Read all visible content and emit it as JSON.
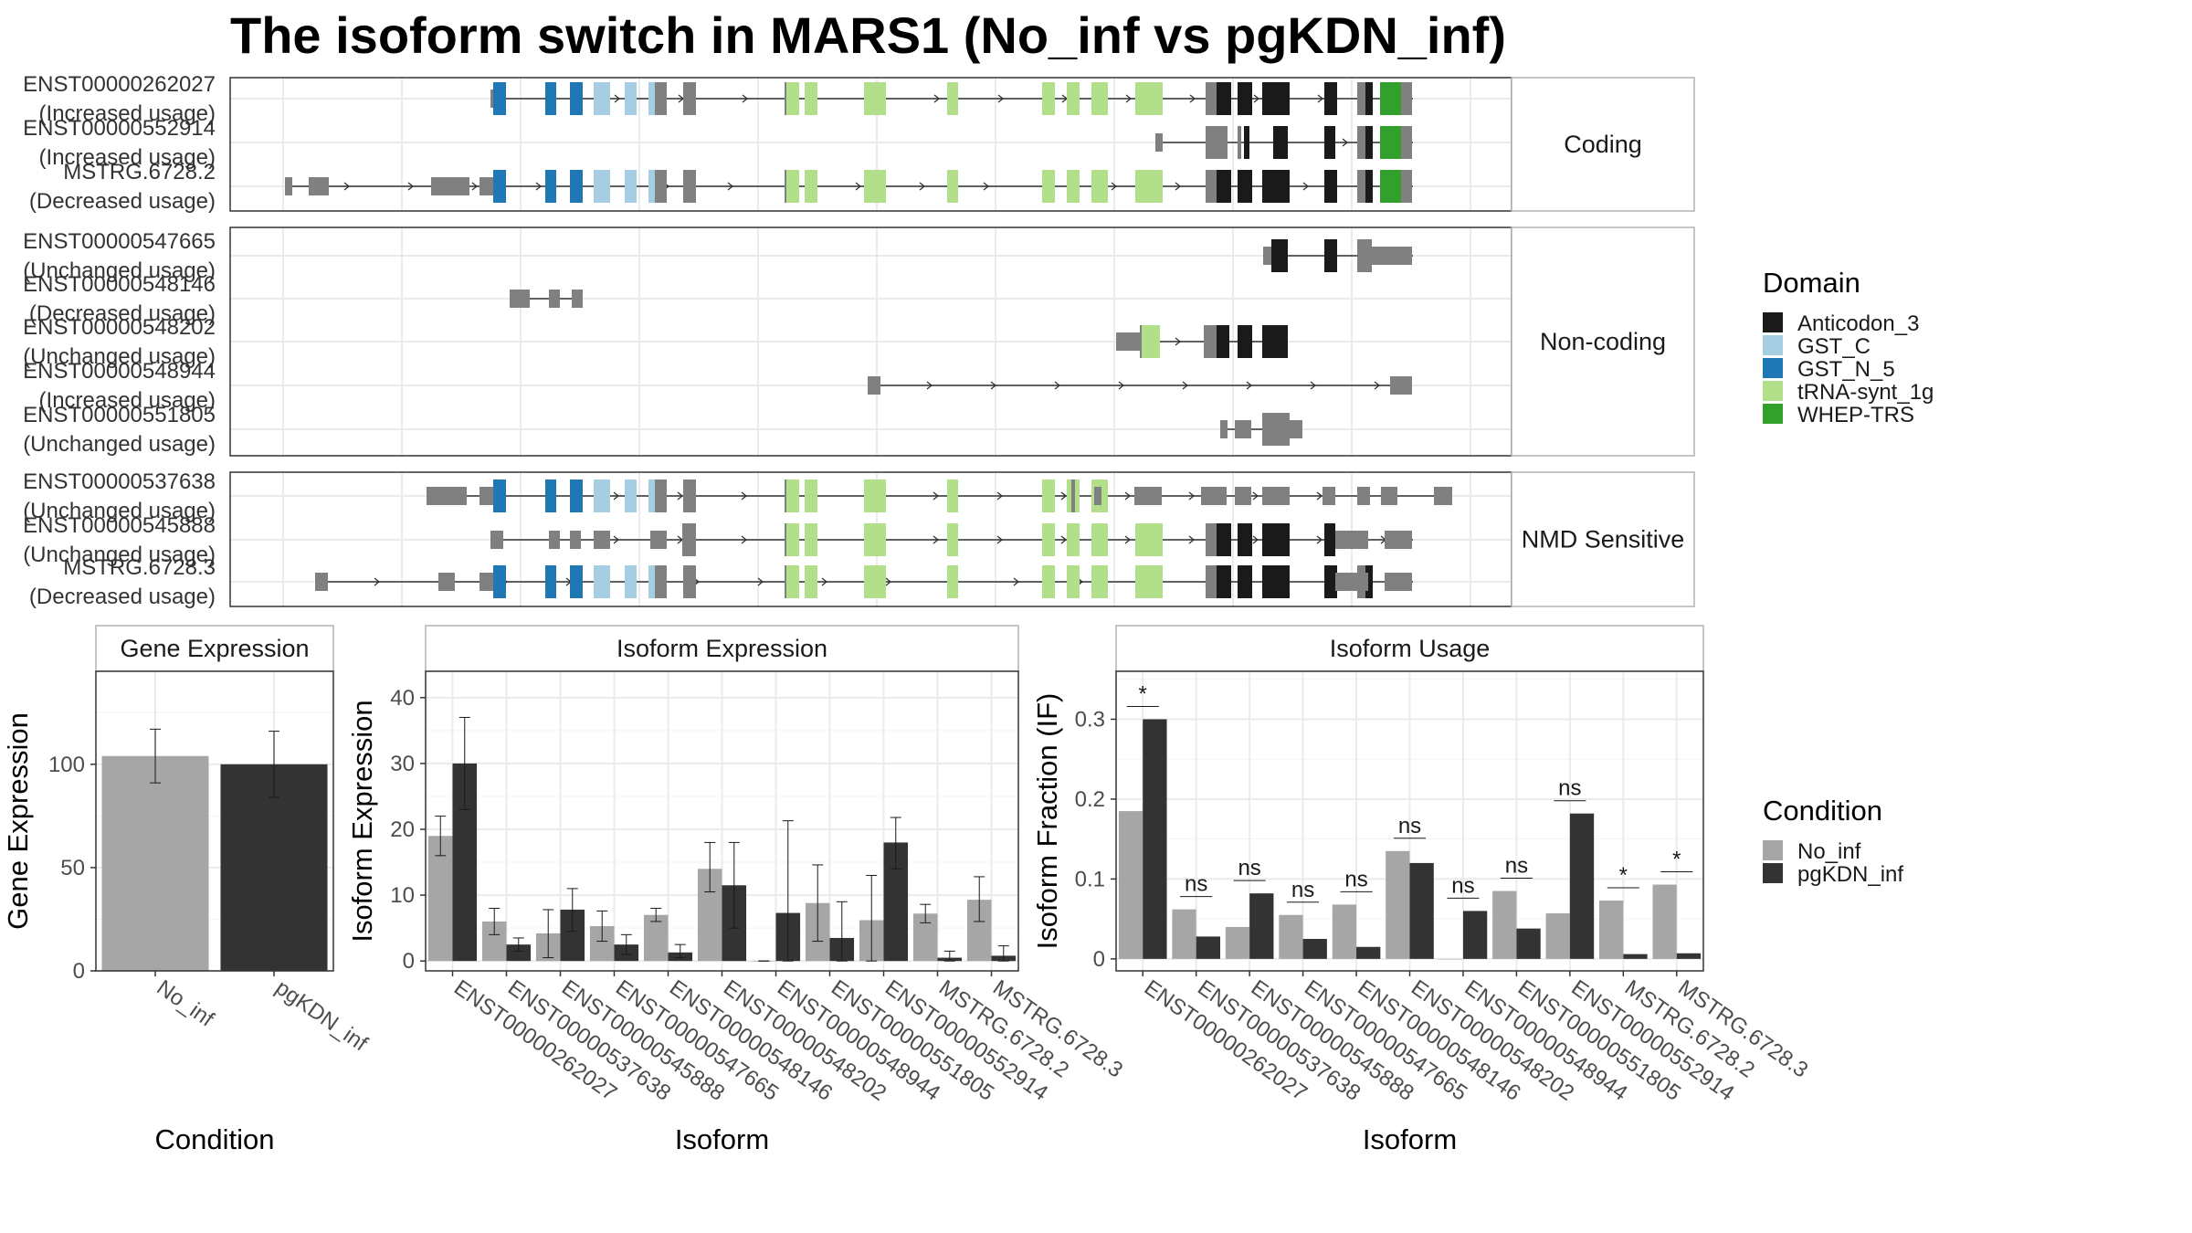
{
  "title": "The isoform switch in MARS1 (No_inf vs pgKDN_inf)",
  "domain_legend": {
    "title": "Domain",
    "items": [
      {
        "label": "Anticodon_3",
        "color": "#1a1a1a"
      },
      {
        "label": "GST_C",
        "color": "#a6cee3"
      },
      {
        "label": "GST_N_5",
        "color": "#1f78b4"
      },
      {
        "label": "tRNA-synt_1g",
        "color": "#b2df8a"
      },
      {
        "label": "WHEP-TRS",
        "color": "#33a02c"
      }
    ]
  },
  "condition_legend": {
    "title": "Condition",
    "items": [
      {
        "label": "No_inf",
        "color": "#a6a6a6"
      },
      {
        "label": "pgKDN_inf",
        "color": "#333333"
      }
    ]
  },
  "transcript_panels": [
    {
      "strip": "Coding",
      "rows": [
        {
          "id": "ENST00000262027",
          "usage": "(Increased usage)"
        },
        {
          "id": "ENST00000552914",
          "usage": "(Increased usage)"
        },
        {
          "id": "MSTRG.6728.2",
          "usage": "(Decreased usage)"
        }
      ]
    },
    {
      "strip": "Non-coding",
      "rows": [
        {
          "id": "ENST00000547665",
          "usage": "(Unchanged usage)"
        },
        {
          "id": "ENST00000548146",
          "usage": "(Decreased usage)"
        },
        {
          "id": "ENST00000548202",
          "usage": "(Unchanged usage)"
        },
        {
          "id": "ENST00000548944",
          "usage": "(Increased usage)"
        },
        {
          "id": "ENST00000551805",
          "usage": "(Unchanged usage)"
        }
      ]
    },
    {
      "strip": "NMD Sensitive",
      "rows": [
        {
          "id": "ENST00000537638",
          "usage": "(Unchanged usage)"
        },
        {
          "id": "ENST00000545888",
          "usage": "(Unchanged usage)"
        },
        {
          "id": "MSTRG.6728.3",
          "usage": "(Decreased usage)"
        }
      ]
    }
  ],
  "chart_data": [
    {
      "type": "bar",
      "title": "Gene Expression",
      "xlabel": "Condition",
      "ylabel": "Gene Expression",
      "categories": [
        "No_inf",
        "pgKDN_inf"
      ],
      "yticks": [
        0,
        50,
        100
      ],
      "ylim": [
        0,
        145
      ],
      "series": [
        {
          "name": "No_inf",
          "values": [
            104,
            null
          ],
          "err_low": [
            91,
            null
          ],
          "err_high": [
            117,
            null
          ]
        },
        {
          "name": "pgKDN_inf",
          "values": [
            null,
            100
          ],
          "err_low": [
            null,
            84
          ],
          "err_high": [
            null,
            116
          ]
        }
      ]
    },
    {
      "type": "bar",
      "title": "Isoform Expression",
      "xlabel": "Isoform",
      "ylabel": "Isoform Expression",
      "categories": [
        "ENST00000262027",
        "ENST00000537638",
        "ENST00000545888",
        "ENST00000547665",
        "ENST00000548146",
        "ENST00000548202",
        "ENST00000548944",
        "ENST00000551805",
        "ENST00000552914",
        "MSTRG.6728.2",
        "MSTRG.6728.3"
      ],
      "yticks": [
        0,
        10,
        20,
        30,
        40
      ],
      "ylim": [
        -1.5,
        44
      ],
      "series": [
        {
          "name": "No_inf",
          "values": [
            19,
            6,
            4.2,
            5.3,
            7,
            14,
            0,
            8.8,
            6.2,
            7.2,
            9.3
          ],
          "err_low": [
            16,
            4,
            0.5,
            3,
            6,
            10.5,
            0,
            3,
            0,
            5.8,
            6
          ],
          "err_high": [
            22,
            8,
            7.8,
            7.6,
            8,
            18,
            0,
            14.6,
            13,
            8.6,
            12.8
          ]
        },
        {
          "name": "pgKDN_inf",
          "values": [
            30,
            2.5,
            7.8,
            2.5,
            1.3,
            11.5,
            7.3,
            3.5,
            18,
            0.5,
            0.8
          ],
          "err_low": [
            23,
            1.5,
            4.5,
            1,
            0.5,
            5,
            0,
            0,
            14,
            0,
            0
          ],
          "err_high": [
            37,
            3.5,
            11,
            4,
            2.5,
            18,
            21.3,
            9,
            21.8,
            1.5,
            2.3
          ]
        }
      ]
    },
    {
      "type": "bar",
      "title": "Isoform Usage",
      "xlabel": "Isoform",
      "ylabel": "Isoform Fraction (IF)",
      "categories": [
        "ENST00000262027",
        "ENST00000537638",
        "ENST00000545888",
        "ENST00000547665",
        "ENST00000548146",
        "ENST00000548202",
        "ENST00000548944",
        "ENST00000551805",
        "ENST00000552914",
        "MSTRG.6728.2",
        "MSTRG.6728.3"
      ],
      "yticks": [
        0.0,
        0.1,
        0.2,
        0.3
      ],
      "ylim": [
        -0.015,
        0.36
      ],
      "significance": [
        "*",
        "ns",
        "ns",
        "ns",
        "ns",
        "ns",
        "ns",
        "ns",
        "ns",
        "*",
        "*"
      ],
      "series": [
        {
          "name": "No_inf",
          "values": [
            0.185,
            0.062,
            0.04,
            0.055,
            0.068,
            0.135,
            0,
            0.085,
            0.057,
            0.073,
            0.093
          ]
        },
        {
          "name": "pgKDN_inf",
          "values": [
            0.3,
            0.028,
            0.082,
            0.025,
            0.015,
            0.12,
            0.06,
            0.038,
            0.182,
            0.006,
            0.007
          ]
        }
      ]
    }
  ]
}
